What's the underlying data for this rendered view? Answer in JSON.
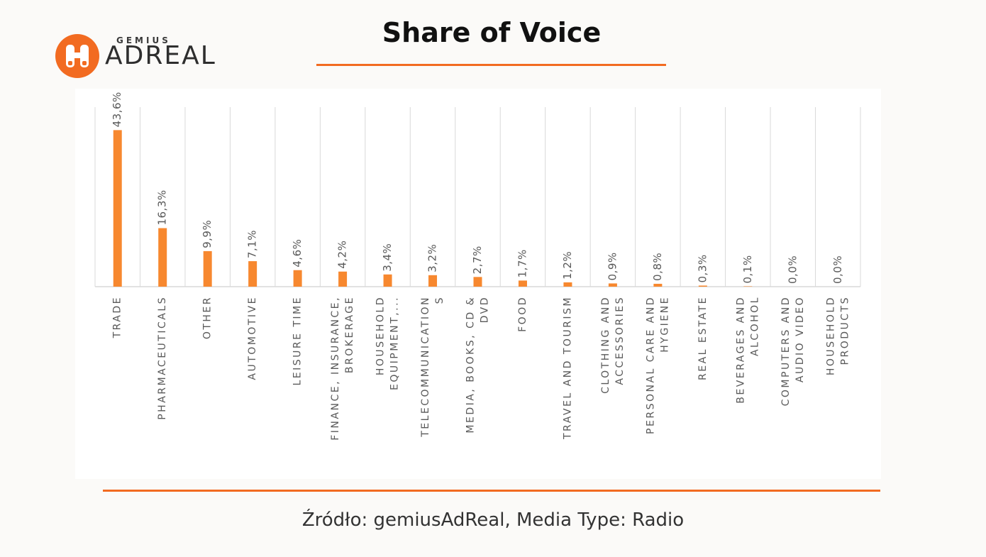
{
  "header": {
    "brand_small": "GEMIUS",
    "brand_big": "ADREAL",
    "title": "Share of Voice"
  },
  "footer": {
    "source": "Źródło: gemiusAdReal, Media Type: Radio"
  },
  "colors": {
    "accent": "#f26b21",
    "bar": "#f7882f",
    "grid": "#d9d9d9",
    "label": "#595959"
  },
  "chart_data": {
    "type": "bar",
    "title": "",
    "xlabel": "",
    "ylabel": "",
    "ylim": [
      0,
      50
    ],
    "grid": "vertical separators",
    "categories": [
      [
        "TRADE"
      ],
      [
        "PHARMACEUTICALS"
      ],
      [
        "OTHER"
      ],
      [
        "AUTOMOTIVE"
      ],
      [
        "LEISURE TIME"
      ],
      [
        "FINANCE, INSURANCE,",
        "BROKERAGE"
      ],
      [
        "HOUSEHOLD",
        "EQUIPMENT,..."
      ],
      [
        "TELECOMMUNICATION",
        "S"
      ],
      [
        "MEDIA, BOOKS, CD &",
        "DVD"
      ],
      [
        "FOOD"
      ],
      [
        "TRAVEL AND TOURISM"
      ],
      [
        "CLOTHING AND",
        "ACCESSORIES"
      ],
      [
        "PERSONAL CARE AND",
        "HYGIENE"
      ],
      [
        "REAL ESTATE"
      ],
      [
        "BEVERAGES AND",
        "ALCOHOL"
      ],
      [
        "COMPUTERS AND",
        "AUDIO VIDEO"
      ],
      [
        "HOUSEHOLD",
        "PRODUCTS"
      ]
    ],
    "values": [
      43.6,
      16.3,
      9.9,
      7.1,
      4.6,
      4.2,
      3.4,
      3.2,
      2.7,
      1.7,
      1.2,
      0.9,
      0.8,
      0.3,
      0.1,
      0.0,
      0.0
    ],
    "value_labels": [
      "43,6%",
      "16,3%",
      "9,9%",
      "7,1%",
      "4,6%",
      "4,2%",
      "3,4%",
      "3,2%",
      "2,7%",
      "1,7%",
      "1,2%",
      "0,9%",
      "0,8%",
      "0,3%",
      "0,1%",
      "0,0%",
      "0,0%"
    ]
  }
}
